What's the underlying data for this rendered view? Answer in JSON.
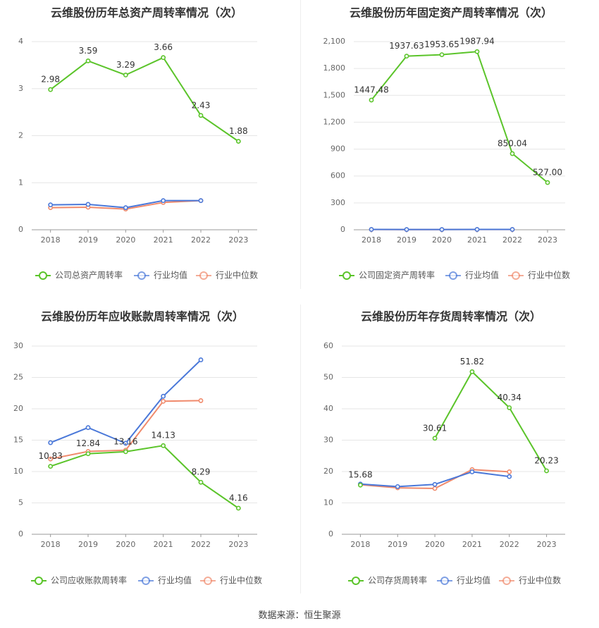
{
  "source": "数据来源：恒生聚源",
  "legend_shared": {
    "avg": "行业均值",
    "median": "行业中位数"
  },
  "colors": {
    "company": "#5bc42a",
    "avg": "#4a78d9",
    "median": "#f08a6c",
    "grid": "#e6e6e6",
    "axis": "#666666"
  },
  "chart_data": [
    {
      "type": "line",
      "title": "云维股份历年总资产周转率情况（次）",
      "x": [
        "2018",
        "2019",
        "2020",
        "2021",
        "2022",
        "2023"
      ],
      "yticks": [
        "0",
        "1",
        "2",
        "3",
        "4"
      ],
      "ylim": [
        0,
        4
      ],
      "series": [
        {
          "name": "公司总资产周转率",
          "role": "company",
          "values": [
            2.98,
            3.59,
            3.29,
            3.66,
            2.43,
            1.88
          ],
          "labels": [
            "2.98",
            "3.59",
            "3.29",
            "3.66",
            "2.43",
            "1.88"
          ]
        },
        {
          "name": "行业均值",
          "role": "avg",
          "values": [
            0.53,
            0.54,
            0.47,
            0.62,
            0.62,
            null
          ]
        },
        {
          "name": "行业中位数",
          "role": "median",
          "values": [
            0.47,
            0.48,
            0.44,
            0.58,
            0.62,
            null
          ]
        }
      ]
    },
    {
      "type": "line",
      "title": "云维股份历年固定资产周转率情况（次）",
      "x": [
        "2018",
        "2019",
        "2020",
        "2021",
        "2022",
        "2023"
      ],
      "yticks": [
        "0",
        "300",
        "600",
        "900",
        "1,200",
        "1,500",
        "1,800",
        "2,100"
      ],
      "ylim": [
        0,
        2100
      ],
      "series": [
        {
          "name": "公司固定资产周转率",
          "role": "company",
          "values": [
            1447.48,
            1937.63,
            1953.65,
            1987.94,
            850.04,
            527.0
          ],
          "labels": [
            "1447.48",
            "1937.63",
            "1953.65",
            "1987.94",
            "850.04",
            "527.00"
          ]
        },
        {
          "name": "行业均值",
          "role": "avg",
          "values": [
            4,
            3,
            3,
            4,
            4,
            null
          ]
        },
        {
          "name": "行业中位数",
          "role": "median",
          "values": [
            3,
            2,
            2,
            3,
            3,
            null
          ]
        }
      ]
    },
    {
      "type": "line",
      "title": "云维股份历年应收账款周转率情况（次）",
      "x": [
        "2018",
        "2019",
        "2020",
        "2021",
        "2022",
        "2023"
      ],
      "yticks": [
        "0",
        "5",
        "10",
        "15",
        "20",
        "25",
        "30"
      ],
      "ylim": [
        0,
        30
      ],
      "series": [
        {
          "name": "公司应收账款周转率",
          "role": "company",
          "values": [
            10.83,
            12.84,
            13.16,
            14.13,
            8.29,
            4.16
          ],
          "labels": [
            "10.83",
            "12.84",
            "13.16",
            "14.13",
            "8.29",
            "4.16"
          ]
        },
        {
          "name": "行业均值",
          "role": "avg",
          "values": [
            14.6,
            17.0,
            14.5,
            22.0,
            27.8,
            null
          ]
        },
        {
          "name": "行业中位数",
          "role": "median",
          "values": [
            12.0,
            13.2,
            13.4,
            21.2,
            21.3,
            null
          ]
        }
      ]
    },
    {
      "type": "line",
      "title": "云维股份历年存货周转率情况（次）",
      "x": [
        "2018",
        "2019",
        "2020",
        "2021",
        "2022",
        "2023"
      ],
      "yticks": [
        "0",
        "10",
        "20",
        "30",
        "40",
        "50",
        "60"
      ],
      "ylim": [
        0,
        60
      ],
      "series": [
        {
          "name": "公司存货周转率",
          "role": "company",
          "values": [
            15.68,
            null,
            30.61,
            51.82,
            40.34,
            20.23
          ],
          "labels": [
            "15.68",
            "",
            "30.61",
            "51.82",
            "40.34",
            "20.23"
          ]
        },
        {
          "name": "行业均值",
          "role": "avg",
          "values": [
            16.0,
            15.2,
            15.9,
            19.9,
            18.4,
            null
          ]
        },
        {
          "name": "行业中位数",
          "role": "median",
          "values": [
            15.8,
            14.8,
            14.6,
            20.6,
            19.9,
            null
          ]
        }
      ]
    }
  ]
}
